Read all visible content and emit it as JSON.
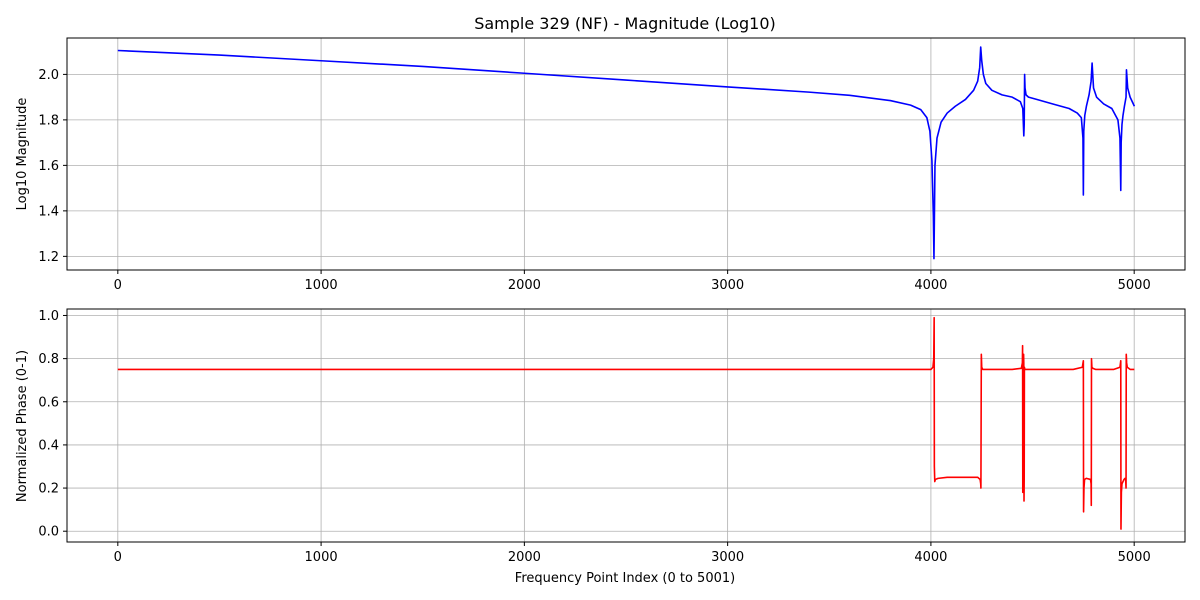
{
  "chart_data": [
    {
      "type": "line",
      "title": "Sample 329 (NF) - Magnitude (Log10)",
      "xlabel": "",
      "ylabel": "Log10 Magnitude",
      "xlim": [
        -250,
        5250
      ],
      "ylim": [
        1.14,
        2.16
      ],
      "xticks": [
        0,
        1000,
        2000,
        3000,
        4000,
        5000
      ],
      "yticks": [
        1.2,
        1.4,
        1.6,
        1.8,
        2.0
      ],
      "ytick_labels": [
        "1.2",
        "1.4",
        "1.6",
        "1.8",
        "2.0"
      ],
      "grid": true,
      "color": "#0000ff",
      "series": [
        {
          "x": [
            0,
            500,
            1000,
            1500,
            2000,
            2500,
            3000,
            3400,
            3600,
            3800,
            3900,
            3950,
            3980,
            3995,
            4005,
            4012,
            4015,
            4020,
            4030,
            4050,
            4080,
            4120,
            4170,
            4210,
            4230,
            4240,
            4245,
            4250,
            4258,
            4270,
            4300,
            4350,
            4400,
            4440,
            4452,
            4457,
            4459,
            4461,
            4463,
            4468,
            4480,
            4520,
            4600,
            4680,
            4720,
            4740,
            4748,
            4750,
            4752,
            4757,
            4765,
            4778,
            4788,
            4793,
            4800,
            4815,
            4850,
            4890,
            4920,
            4930,
            4934,
            4936,
            4940,
            4945,
            4952,
            4960,
            4962,
            4968,
            4980,
            5001
          ],
          "y": [
            2.105,
            2.085,
            2.06,
            2.035,
            2.005,
            1.975,
            1.945,
            1.922,
            1.908,
            1.885,
            1.865,
            1.845,
            1.81,
            1.75,
            1.62,
            1.38,
            1.19,
            1.6,
            1.72,
            1.79,
            1.83,
            1.86,
            1.89,
            1.93,
            1.97,
            2.03,
            2.12,
            2.06,
            2.0,
            1.96,
            1.93,
            1.91,
            1.9,
            1.88,
            1.85,
            1.73,
            1.78,
            2.0,
            1.94,
            1.91,
            1.9,
            1.89,
            1.87,
            1.85,
            1.83,
            1.81,
            1.72,
            1.47,
            1.75,
            1.82,
            1.86,
            1.91,
            1.97,
            2.05,
            1.94,
            1.9,
            1.87,
            1.85,
            1.8,
            1.72,
            1.49,
            1.7,
            1.78,
            1.82,
            1.86,
            1.9,
            2.02,
            1.94,
            1.9,
            1.86
          ]
        }
      ]
    },
    {
      "type": "line",
      "title": "",
      "xlabel": "Frequency Point Index (0 to 5001)",
      "ylabel": "Normalized Phase (0-1)",
      "xlim": [
        -250,
        5250
      ],
      "ylim": [
        -0.05,
        1.03
      ],
      "xticks": [
        0,
        1000,
        2000,
        3000,
        4000,
        5000
      ],
      "yticks": [
        0.0,
        0.2,
        0.4,
        0.6,
        0.8,
        1.0
      ],
      "ytick_labels": [
        "0.0",
        "0.2",
        "0.4",
        "0.6",
        "0.8",
        "1.0"
      ],
      "grid": true,
      "color": "#ff0000",
      "series": [
        {
          "x": [
            0,
            1000,
            2000,
            3000,
            4000,
            4010,
            4014,
            4016,
            4017,
            4019,
            4022,
            4035,
            4080,
            4150,
            4230,
            4242,
            4245,
            4246,
            4248,
            4250,
            4255,
            4270,
            4400,
            4445,
            4450,
            4451,
            4452,
            4453,
            4455,
            4456,
            4457,
            4458,
            4459,
            4460,
            4462,
            4470,
            4700,
            4745,
            4750,
            4751,
            4753,
            4756,
            4765,
            4785,
            4788,
            4789,
            4790,
            4792,
            4797,
            4810,
            4900,
            4930,
            4934,
            4935,
            4937,
            4940,
            4950,
            4955,
            4958,
            4959,
            4960,
            4961,
            4963,
            4966,
            4980,
            5001
          ],
          "y": [
            0.75,
            0.75,
            0.75,
            0.75,
            0.75,
            0.76,
            0.8,
            0.99,
            0.3,
            0.23,
            0.24,
            0.245,
            0.25,
            0.25,
            0.25,
            0.24,
            0.22,
            0.2,
            0.82,
            0.76,
            0.75,
            0.75,
            0.75,
            0.755,
            0.78,
            0.86,
            0.18,
            0.22,
            0.2,
            0.82,
            0.78,
            0.14,
            0.25,
            0.76,
            0.75,
            0.75,
            0.75,
            0.76,
            0.79,
            0.09,
            0.2,
            0.24,
            0.245,
            0.24,
            0.22,
            0.12,
            0.8,
            0.76,
            0.755,
            0.75,
            0.75,
            0.76,
            0.79,
            0.01,
            0.18,
            0.22,
            0.24,
            0.245,
            0.24,
            0.22,
            0.2,
            0.82,
            0.78,
            0.76,
            0.75,
            0.75
          ]
        }
      ]
    }
  ]
}
